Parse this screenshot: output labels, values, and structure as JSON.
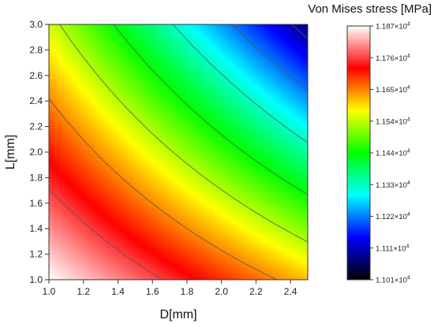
{
  "chart_data": {
    "type": "heatmap",
    "title": "",
    "xlabel": "D[mm]",
    "ylabel": "L[mm]",
    "xlim": [
      1.0,
      2.5
    ],
    "ylim": [
      1.0,
      3.0
    ],
    "x_ticks": [
      "1.0",
      "1.2",
      "1.4",
      "1.6",
      "1.8",
      "2.0",
      "2.2",
      "2.4"
    ],
    "y_ticks": [
      "1.0",
      "1.2",
      "1.4",
      "1.6",
      "1.8",
      "2.0",
      "2.2",
      "2.4",
      "2.6",
      "2.8",
      "3.0"
    ],
    "colorbar": {
      "title": "Von Mises stress [MPa]",
      "min": 11010,
      "max": 11870,
      "levels": [
        11010,
        11110,
        11220,
        11330,
        11440,
        11540,
        11650,
        11760,
        11870
      ],
      "labels": [
        {
          "mantissa": "1.101",
          "exp": "4"
        },
        {
          "mantissa": "1.111",
          "exp": "4"
        },
        {
          "mantissa": "1.122",
          "exp": "4"
        },
        {
          "mantissa": "1.133",
          "exp": "4"
        },
        {
          "mantissa": "1.144",
          "exp": "4"
        },
        {
          "mantissa": "1.154",
          "exp": "4"
        },
        {
          "mantissa": "1.165",
          "exp": "4"
        },
        {
          "mantissa": "1.176",
          "exp": "4"
        },
        {
          "mantissa": "1.187",
          "exp": "4"
        }
      ],
      "colors": [
        "#000000",
        "#0000ff",
        "#00ffff",
        "#00ff00",
        "#ffff00",
        "#ff0000",
        "#ffffff"
      ]
    },
    "corner_values": {
      "D1.0_L1.0": 11870,
      "D2.5_L1.0": 11620,
      "D1.0_L3.0": 11560,
      "D2.5_L3.0": 11080
    },
    "grid": false
  }
}
